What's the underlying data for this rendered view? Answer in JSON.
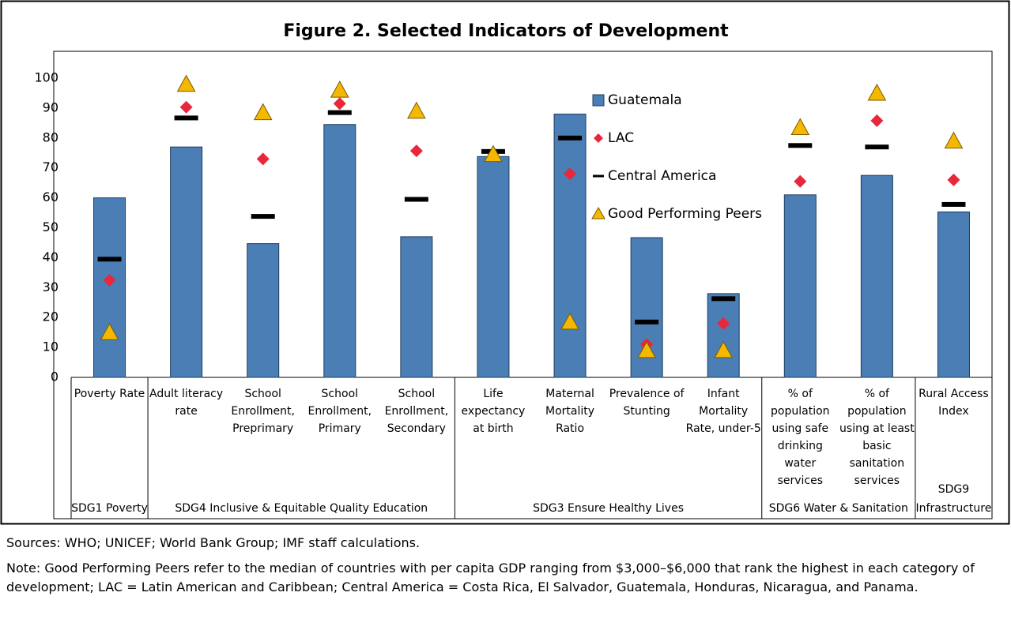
{
  "chart_data": {
    "type": "bar",
    "title": "Figure 2. Selected Indicators of Development",
    "categories": [
      "Poverty Rate",
      "Adult literacy rate",
      "School Enrollment, Preprimary",
      "School Enrollment, Primary",
      "School Enrollment, Secondary",
      "Life expectancy at birth",
      "Maternal Mortality Ratio",
      "Prevalence of Stunting",
      "Infant Mortality Rate, under-5",
      "% of population using safe drinking water services",
      "% of population using at least basic sanitation services",
      "Rural Access Index"
    ],
    "groups": [
      {
        "label": "SDG1 Poverty",
        "first": 0,
        "last": 0
      },
      {
        "label": "SDG4 Inclusive & Equitable Quality Education",
        "first": 1,
        "last": 4
      },
      {
        "label": "SDG3 Ensure Healthy Lives",
        "first": 5,
        "last": 8
      },
      {
        "label": "SDG6 Water & Sanitation",
        "first": 9,
        "last": 10
      },
      {
        "label": "SDG9 Infrastructure",
        "first": 11,
        "last": 11
      }
    ],
    "series": [
      {
        "name": "Guatemala",
        "marker": "bar",
        "color": "#4a7eb5",
        "values": [
          60,
          77,
          44.7,
          84.5,
          47,
          73.8,
          88,
          46.7,
          28,
          61,
          67.5,
          55.3
        ]
      },
      {
        "name": "LAC",
        "marker": "diamond",
        "color": "#e8283a",
        "values": [
          32.5,
          90.3,
          73,
          91.5,
          75.7,
          75,
          68,
          11,
          18,
          65.5,
          85.8,
          66
        ]
      },
      {
        "name": "Central America",
        "marker": "dash",
        "color": "#000000",
        "values": [
          39.5,
          86.7,
          53.8,
          88.5,
          59.5,
          75.5,
          80,
          18.5,
          26.3,
          77.5,
          77,
          57.8
        ]
      },
      {
        "name": "Good Performing Peers",
        "marker": "triangle",
        "color": "#f5b800",
        "values": [
          15,
          98,
          88.5,
          96,
          89,
          74.5,
          18.5,
          9,
          9,
          83.5,
          95,
          79
        ]
      }
    ],
    "ylim": [
      0,
      100
    ],
    "yticks": [
      0,
      10,
      20,
      30,
      40,
      50,
      60,
      70,
      80,
      90,
      100
    ],
    "grid": false,
    "sources": "Sources: WHO; UNICEF; World Bank Group; IMF staff calculations.",
    "note": "Note: Good Performing Peers refer to the median of countries with per capita GDP ranging from $3,000–$6,000 that rank the highest in each category of development; LAC = Latin American and Caribbean; Central America = Costa Rica, El Salvador, Guatemala, Honduras, Nicaragua, and Panama."
  }
}
